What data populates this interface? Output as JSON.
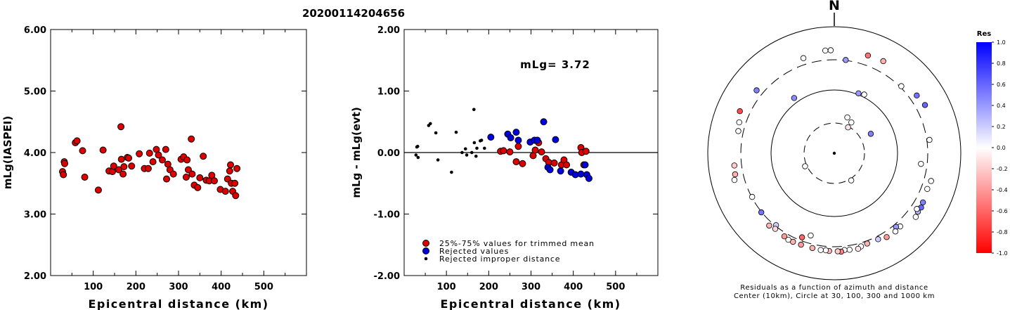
{
  "title": "20200114204656",
  "chart_data": [
    {
      "type": "scatter",
      "ylabel": "mLg(IASPEI)",
      "xlabel": "Epicentral distance (km)",
      "xlim": [
        0,
        600
      ],
      "ylim": [
        2.0,
        6.0
      ],
      "xticks": [
        "100",
        "200",
        "300",
        "400",
        "500"
      ],
      "yticks": [
        "2.00",
        "3.00",
        "4.00",
        "5.00",
        "6.00"
      ],
      "grid": false,
      "series": [
        {
          "color": "#dd0000",
          "points": [
            [
              28,
              3.69
            ],
            [
              30,
              3.64
            ],
            [
              32,
              3.85
            ],
            [
              33,
              3.82
            ],
            [
              58,
              4.16
            ],
            [
              62,
              4.19
            ],
            [
              75,
              4.03
            ],
            [
              80,
              3.6
            ],
            [
              112,
              3.39
            ],
            [
              123,
              4.04
            ],
            [
              137,
              3.7
            ],
            [
              145,
              3.69
            ],
            [
              148,
              3.78
            ],
            [
              160,
              3.72
            ],
            [
              165,
              4.42
            ],
            [
              166,
              3.89
            ],
            [
              170,
              3.65
            ],
            [
              172,
              3.77
            ],
            [
              180,
              3.92
            ],
            [
              183,
              3.91
            ],
            [
              190,
              3.78
            ],
            [
              208,
              3.98
            ],
            [
              220,
              3.74
            ],
            [
              229,
              3.74
            ],
            [
              232,
              3.99
            ],
            [
              240,
              3.85
            ],
            [
              248,
              4.05
            ],
            [
              253,
              3.96
            ],
            [
              262,
              3.88
            ],
            [
              270,
              4.05
            ],
            [
              272,
              3.57
            ],
            [
              275,
              3.81
            ],
            [
              280,
              3.72
            ],
            [
              288,
              3.65
            ],
            [
              306,
              3.89
            ],
            [
              312,
              3.93
            ],
            [
              318,
              3.6
            ],
            [
              320,
              3.88
            ],
            [
              323,
              3.72
            ],
            [
              330,
              4.22
            ],
            [
              332,
              3.65
            ],
            [
              337,
              3.47
            ],
            [
              345,
              3.43
            ],
            [
              350,
              3.59
            ],
            [
              358,
              3.94
            ],
            [
              365,
              3.55
            ],
            [
              372,
              3.54
            ],
            [
              378,
              3.63
            ],
            [
              384,
              3.54
            ],
            [
              398,
              3.4
            ],
            [
              410,
              3.37
            ],
            [
              415,
              3.57
            ],
            [
              420,
              3.7
            ],
            [
              422,
              3.8
            ],
            [
              424,
              3.5
            ],
            [
              427,
              3.37
            ],
            [
              432,
              3.5
            ],
            [
              434,
              3.3
            ],
            [
              437,
              3.74
            ]
          ]
        }
      ]
    },
    {
      "type": "scatter",
      "ylabel": "mLg - mLg(evt)",
      "xlabel": "Epicentral distance (km)",
      "xlim": [
        0,
        600
      ],
      "ylim": [
        -2.0,
        2.0
      ],
      "xticks": [
        "100",
        "200",
        "300",
        "400",
        "500"
      ],
      "yticks": [
        "-2.00",
        "-1.00",
        "0.00",
        "1.00",
        "2.00"
      ],
      "grid": false,
      "reference_line": 0.0,
      "annotation": "mLg= 3.72",
      "legend_position": "bottom-left",
      "series": [
        {
          "name": "25%-75% values for trimmed mean",
          "color": "#dd0000",
          "marker": "circle",
          "points": [
            [
              228,
              0.02
            ],
            [
              235,
              0.03
            ],
            [
              250,
              0.01
            ],
            [
              265,
              -0.15
            ],
            [
              270,
              0.1
            ],
            [
              280,
              -0.18
            ],
            [
              305,
              -0.05
            ],
            [
              310,
              0.04
            ],
            [
              318,
              0.16
            ],
            [
              325,
              0.01
            ],
            [
              335,
              -0.1
            ],
            [
              342,
              -0.16
            ],
            [
              355,
              -0.17
            ],
            [
              372,
              -0.2
            ],
            [
              378,
              -0.12
            ],
            [
              384,
              -0.2
            ],
            [
              418,
              0.08
            ],
            [
              420,
              0.0
            ],
            [
              425,
              -0.2
            ],
            [
              430,
              0.02
            ]
          ]
        },
        {
          "name": "Rejected values",
          "color": "#0000dd",
          "marker": "circle",
          "points": [
            [
              205,
              0.25
            ],
            [
              245,
              0.3
            ],
            [
              252,
              0.24
            ],
            [
              265,
              0.33
            ],
            [
              270,
              0.2
            ],
            [
              298,
              0.17
            ],
            [
              308,
              0.2
            ],
            [
              315,
              0.2
            ],
            [
              330,
              0.5
            ],
            [
              340,
              -0.24
            ],
            [
              345,
              -0.28
            ],
            [
              358,
              0.21
            ],
            [
              370,
              -0.3
            ],
            [
              395,
              -0.32
            ],
            [
              405,
              -0.36
            ],
            [
              418,
              -0.35
            ],
            [
              428,
              -0.2
            ],
            [
              432,
              -0.36
            ],
            [
              437,
              -0.42
            ]
          ]
        },
        {
          "name": "Rejected improper distance",
          "color": "#000000",
          "marker": "dot",
          "points": [
            [
              28,
              -0.04
            ],
            [
              30,
              0.09
            ],
            [
              32,
              0.1
            ],
            [
              33,
              -0.08
            ],
            [
              58,
              0.44
            ],
            [
              62,
              0.47
            ],
            [
              75,
              0.32
            ],
            [
              80,
              -0.12
            ],
            [
              112,
              -0.32
            ],
            [
              123,
              0.33
            ],
            [
              137,
              0.0
            ],
            [
              145,
              0.06
            ],
            [
              148,
              -0.04
            ],
            [
              160,
              0.0
            ],
            [
              165,
              0.7
            ],
            [
              166,
              0.16
            ],
            [
              170,
              -0.06
            ],
            [
              172,
              0.07
            ],
            [
              180,
              0.19
            ],
            [
              183,
              0.2
            ],
            [
              190,
              0.07
            ]
          ]
        }
      ]
    },
    {
      "type": "polar-scatter",
      "north_label": "N",
      "caption_line1": "Residuals as a function of azimuth and distance",
      "caption_line2": "Center (10km), Circle at 30, 100, 300 and 1000 km",
      "rings_km": [
        30,
        100,
        300,
        1000
      ],
      "colorbar": {
        "title": "Res",
        "ticks": [
          "1.0",
          "0.8",
          "0.6",
          "0.4",
          "0.2",
          "0.0",
          "-0.2",
          "-0.4",
          "-0.6",
          "-0.8",
          "-1.0"
        ],
        "max_color": "#0000ff",
        "zero_color": "#ffffff",
        "min_color": "#ff0000"
      },
      "points": [
        {
          "az": -5,
          "dist": 425,
          "res": 0.0
        },
        {
          "az": -2,
          "dist": 425,
          "res": 0.0
        },
        {
          "az": 19,
          "dist": 430,
          "res": -0.55
        },
        {
          "az": 28,
          "dist": 445,
          "res": -0.3
        },
        {
          "az": -18,
          "dist": 380,
          "res": 0.0
        },
        {
          "az": 7,
          "dist": 305,
          "res": 0.4
        },
        {
          "az": -51,
          "dist": 380,
          "res": 0.5
        },
        {
          "az": -66,
          "dist": 430,
          "res": -0.7
        },
        {
          "az": -72,
          "dist": 380,
          "res": 0.0
        },
        {
          "az": -77,
          "dist": 360,
          "res": 0.0
        },
        {
          "az": -36,
          "dist": 120,
          "res": 0.45
        },
        {
          "az": 22,
          "dist": 105,
          "res": 0.4
        },
        {
          "az": 27,
          "dist": 110,
          "res": 0.0
        },
        {
          "az": 45,
          "dist": 315,
          "res": 0.0
        },
        {
          "az": 55,
          "dist": 390,
          "res": 0.55
        },
        {
          "az": 62,
          "dist": 420,
          "res": 0.6
        },
        {
          "az": 20,
          "dist": 40,
          "res": 0.0
        },
        {
          "az": 29,
          "dist": 36,
          "res": 0.0
        },
        {
          "az": 28,
          "dist": 29,
          "res": -0.1
        },
        {
          "az": 62,
          "dist": 45,
          "res": 0.5
        },
        {
          "az": 82,
          "dist": 330,
          "res": 0.0
        },
        {
          "az": 97,
          "dist": 240,
          "res": 0.0
        },
        {
          "az": -105,
          "dist": 430,
          "res": 0.0
        },
        {
          "az": -102,
          "dist": 400,
          "res": -0.3
        },
        {
          "az": -97,
          "dist": 390,
          "res": -0.2
        },
        {
          "az": -118,
          "dist": 295,
          "res": 0.0
        },
        {
          "az": -129,
          "dist": 305,
          "res": 0.55
        },
        {
          "az": -141,
          "dist": 290,
          "res": 0.2
        },
        {
          "az": -114,
          "dist": 32,
          "res": 0.0
        },
        {
          "az": 148,
          "dist": 32,
          "res": 0.0
        },
        {
          "az": 111,
          "dist": 375,
          "res": 0.0
        },
        {
          "az": 106,
          "dist": 390,
          "res": 0.0
        },
        {
          "az": 119,
          "dist": 400,
          "res": 0.5
        },
        {
          "az": 122,
          "dist": 415,
          "res": 0.6
        },
        {
          "az": 128,
          "dist": 430,
          "res": 0.0
        },
        {
          "az": 125,
          "dist": 410,
          "res": 0.3
        },
        {
          "az": 124,
          "dist": 375,
          "res": 0.0
        },
        {
          "az": 138,
          "dist": 360,
          "res": 0.0
        },
        {
          "az": 140,
          "dist": 330,
          "res": 0.4
        },
        {
          "az": 142,
          "dist": 370,
          "res": 0.0
        },
        {
          "az": 148,
          "dist": 365,
          "res": -0.4
        },
        {
          "az": 153,
          "dist": 335,
          "res": 0.2
        },
        {
          "az": 160,
          "dist": 330,
          "res": -0.3
        },
        {
          "az": 164,
          "dist": 340,
          "res": 0.0
        },
        {
          "az": 166,
          "dist": 360,
          "res": -0.1
        },
        {
          "az": 171,
          "dist": 350,
          "res": 0.0
        },
        {
          "az": 174,
          "dist": 345,
          "res": 0.0
        },
        {
          "az": 176,
          "dist": 362,
          "res": -0.5
        },
        {
          "az": 178,
          "dist": 355,
          "res": -0.2
        },
        {
          "az": 183,
          "dist": 352,
          "res": -0.3
        },
        {
          "az": 185,
          "dist": 346,
          "res": 0.0
        },
        {
          "az": 188,
          "dist": 350,
          "res": 0.0
        },
        {
          "az": 193,
          "dist": 345,
          "res": -0.3
        },
        {
          "az": 200,
          "dist": 345,
          "res": -0.4
        },
        {
          "az": 205,
          "dist": 350,
          "res": -0.3
        },
        {
          "az": 208,
          "dist": 353,
          "res": 0.0
        },
        {
          "az": 211,
          "dist": 340,
          "res": -0.4
        },
        {
          "az": 218,
          "dist": 328,
          "res": -0.15
        },
        {
          "az": 222,
          "dist": 345,
          "res": -0.3
        },
        {
          "az": 201,
          "dist": 265,
          "res": -0.6
        },
        {
          "az": 196,
          "dist": 225,
          "res": 0.0
        }
      ]
    }
  ]
}
